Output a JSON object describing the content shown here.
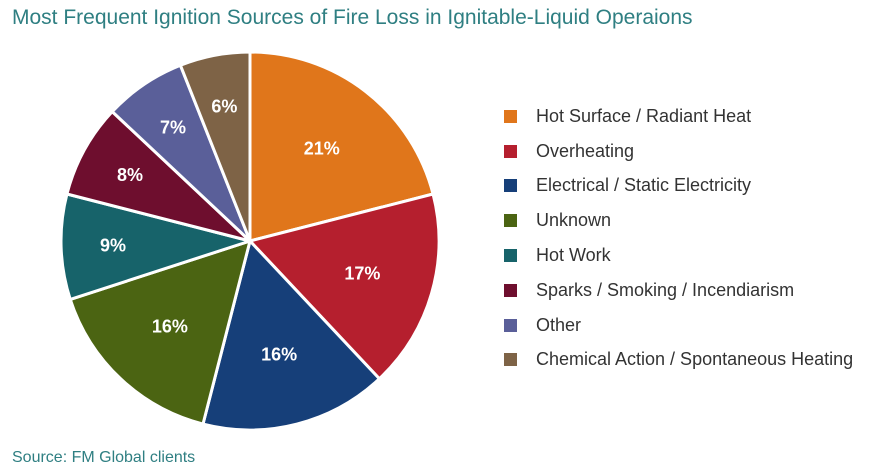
{
  "title": "Most Frequent Ignition Sources of Fire Loss in Ignitable-Liquid Operaions",
  "source": "Source: FM Global clients",
  "chart_data": {
    "type": "pie",
    "legend_position": "right",
    "slices": [
      {
        "label": "Hot Surface / Radiant Heat",
        "value": 21,
        "value_label": "21%",
        "color": "#e0761b"
      },
      {
        "label": "Overheating",
        "value": 17,
        "value_label": "17%",
        "color": "#b51f2e"
      },
      {
        "label": "Electrical / Static Electricity",
        "value": 16,
        "value_label": "16%",
        "color": "#163f79"
      },
      {
        "label": "Unknown",
        "value": 16,
        "value_label": "16%",
        "color": "#4b6412"
      },
      {
        "label": "Hot Work",
        "value": 9,
        "value_label": "9%",
        "color": "#17636a"
      },
      {
        "label": "Sparks / Smoking / Incendiarism",
        "value": 8,
        "value_label": "8%",
        "color": "#6e0e2e"
      },
      {
        "label": "Other",
        "value": 7,
        "value_label": "7%",
        "color": "#5a5f99"
      },
      {
        "label": "Chemical Action / Spontaneous Heating",
        "value": 6,
        "value_label": "6%",
        "color": "#7e6346"
      }
    ]
  }
}
